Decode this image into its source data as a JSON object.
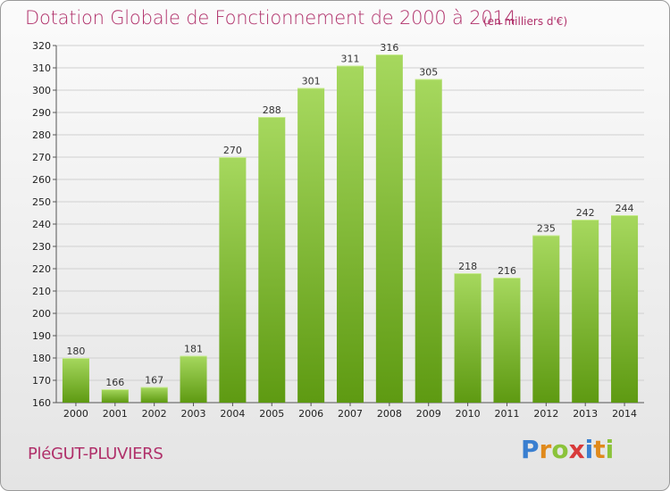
{
  "header": {
    "title": "Dotation Globale de Fonctionnement de 2000 à 2014",
    "unit": "(en milliers d'€)"
  },
  "footer": {
    "commune": "PléGUT-PLUVIERS",
    "logo_text": "Proxiti"
  },
  "colors": {
    "title": "#b0306a",
    "bar_top": "#a6d85e",
    "bar_bottom": "#5e9a12",
    "grid": "#d0d0d0"
  },
  "chart_data": {
    "type": "bar",
    "title": "Dotation Globale de Fonctionnement de 2000 à 2014",
    "xlabel": "",
    "ylabel": "",
    "categories": [
      "2000",
      "2001",
      "2002",
      "2003",
      "2004",
      "2005",
      "2006",
      "2007",
      "2008",
      "2009",
      "2010",
      "2011",
      "2012",
      "2013",
      "2014"
    ],
    "values": [
      180,
      166,
      167,
      181,
      270,
      288,
      301,
      311,
      316,
      305,
      218,
      216,
      235,
      242,
      244
    ],
    "ylim": [
      160,
      320
    ],
    "ytick_step": 10,
    "grid": true
  }
}
